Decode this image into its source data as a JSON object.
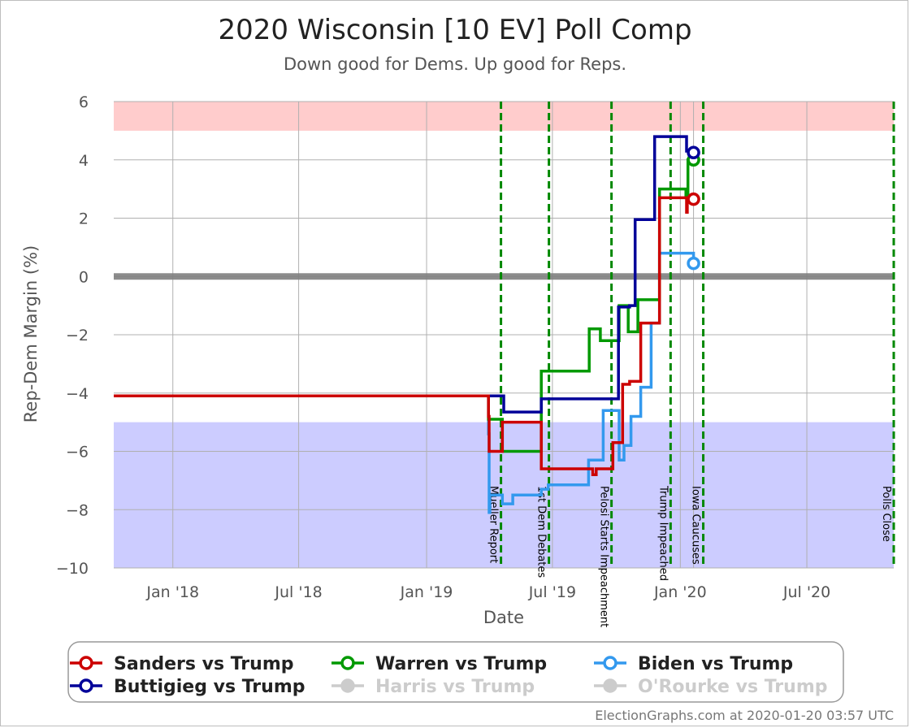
{
  "chart_data": {
    "type": "line",
    "title": "2020 Wisconsin [10 EV] Poll Comp",
    "subtitle": "Down good for Dems. Up good for Reps.",
    "xlabel": "Date",
    "ylabel": "Rep-Dem Margin (%)",
    "ylim": [
      -10,
      6
    ],
    "xlim": [
      "2017-10-08",
      "2020-11-03"
    ],
    "yticks": [
      6,
      4,
      2,
      0,
      -2,
      -4,
      -6,
      -8,
      -10
    ],
    "ytick_labels": [
      "6",
      "4",
      "2",
      "0",
      "−2",
      "−4",
      "−6",
      "−8",
      "−10"
    ],
    "xticks": [
      {
        "date": "2018-01-01",
        "label": "Jan '18"
      },
      {
        "date": "2018-07-01",
        "label": "Jul '18"
      },
      {
        "date": "2019-01-01",
        "label": "Jan '19"
      },
      {
        "date": "2019-07-01",
        "label": "Jul '19"
      },
      {
        "date": "2020-01-01",
        "label": "Jan '20"
      },
      {
        "date": "2020-07-01",
        "label": "Jul '20"
      }
    ],
    "grid": true,
    "bands": [
      {
        "from": 5,
        "to": 6,
        "color": "#ffcccc"
      },
      {
        "from": -10,
        "to": -5,
        "color": "#ccccff"
      }
    ],
    "zero_line": 0,
    "events": [
      {
        "date": "2019-04-18",
        "label": "Mueller Report"
      },
      {
        "date": "2019-06-26",
        "label": "1st Dem Debates"
      },
      {
        "date": "2019-09-24",
        "label": "Pelosi Starts Impeachment"
      },
      {
        "date": "2019-12-18",
        "label": "Trump Impeached"
      },
      {
        "date": "2020-02-03",
        "label": "Iowa Caucuses"
      },
      {
        "date": "2020-11-03",
        "label": "Polls Close"
      }
    ],
    "series": [
      {
        "name": "Sanders vs Trump",
        "color": "#cc0000",
        "points": [
          [
            "2017-10-08",
            -4.1
          ],
          [
            "2019-03-28",
            -4.1
          ],
          [
            "2019-03-31",
            -4.8
          ],
          [
            "2019-04-01",
            -6.0
          ],
          [
            "2019-04-20",
            -5.0
          ],
          [
            "2019-06-15",
            -6.6
          ],
          [
            "2019-08-28",
            -6.8
          ],
          [
            "2019-09-02",
            -6.6
          ],
          [
            "2019-09-26",
            -5.7
          ],
          [
            "2019-10-10",
            -3.7
          ],
          [
            "2019-10-20",
            -3.6
          ],
          [
            "2019-11-05",
            -1.6
          ],
          [
            "2019-12-02",
            2.7
          ],
          [
            "2020-01-09",
            2.7
          ],
          [
            "2020-01-10",
            2.2
          ],
          [
            "2020-01-11",
            2.7
          ],
          [
            "2020-01-20",
            2.65
          ]
        ]
      },
      {
        "name": "Warren vs Trump",
        "color": "#009900",
        "points": [
          [
            "2017-10-08",
            -4.1
          ],
          [
            "2019-03-28",
            -4.1
          ],
          [
            "2019-03-31",
            -4.9
          ],
          [
            "2019-04-20",
            -6.0
          ],
          [
            "2019-06-15",
            -3.25
          ],
          [
            "2019-08-23",
            -1.8
          ],
          [
            "2019-09-08",
            -2.2
          ],
          [
            "2019-10-05",
            -1.0
          ],
          [
            "2019-10-18",
            -1.9
          ],
          [
            "2019-11-01",
            -0.8
          ],
          [
            "2019-12-02",
            3.0
          ],
          [
            "2020-01-09",
            2.7
          ],
          [
            "2020-01-12",
            4.0
          ],
          [
            "2020-01-20",
            4.0
          ]
        ]
      },
      {
        "name": "Biden vs Trump",
        "color": "#3399ee",
        "points": [
          [
            "2017-10-08",
            -4.1
          ],
          [
            "2019-03-28",
            -4.1
          ],
          [
            "2019-03-31",
            -5.4
          ],
          [
            "2019-04-01",
            -8.1
          ],
          [
            "2019-04-02",
            -7.5
          ],
          [
            "2019-04-20",
            -7.8
          ],
          [
            "2019-05-05",
            -7.5
          ],
          [
            "2019-06-15",
            -7.3
          ],
          [
            "2019-06-25",
            -7.15
          ],
          [
            "2019-08-22",
            -6.3
          ],
          [
            "2019-09-12",
            -4.6
          ],
          [
            "2019-10-05",
            -6.3
          ],
          [
            "2019-10-12",
            -5.8
          ],
          [
            "2019-10-22",
            -4.8
          ],
          [
            "2019-11-05",
            -3.8
          ],
          [
            "2019-11-20",
            -1.6
          ],
          [
            "2019-12-02",
            0.8
          ],
          [
            "2020-01-09",
            0.8
          ],
          [
            "2020-01-20",
            0.45
          ]
        ]
      },
      {
        "name": "Buttigieg vs Trump",
        "color": "#000099",
        "points": [
          [
            "2017-10-08",
            -4.1
          ],
          [
            "2019-04-20",
            -4.1
          ],
          [
            "2019-04-22",
            -4.65
          ],
          [
            "2019-06-15",
            -4.2
          ],
          [
            "2019-10-04",
            -1.05
          ],
          [
            "2019-10-20",
            -1.0
          ],
          [
            "2019-10-28",
            1.95
          ],
          [
            "2019-11-25",
            4.8
          ],
          [
            "2020-01-09",
            4.8
          ],
          [
            "2020-01-10",
            4.3
          ],
          [
            "2020-01-20",
            4.25
          ]
        ]
      },
      {
        "name": "Harris vs Trump",
        "color": "#cccccc",
        "points": []
      },
      {
        "name": "O'Rourke vs Trump",
        "color": "#cccccc",
        "points": []
      }
    ]
  },
  "legend": {
    "items": [
      {
        "label": "Sanders vs Trump",
        "color": "#cc0000",
        "text_color": "#222222"
      },
      {
        "label": "Warren vs Trump",
        "color": "#009900",
        "text_color": "#222222"
      },
      {
        "label": "Biden vs Trump",
        "color": "#3399ee",
        "text_color": "#222222"
      },
      {
        "label": "Buttigieg vs Trump",
        "color": "#000099",
        "text_color": "#222222"
      },
      {
        "label": "Harris vs Trump",
        "color": "#cccccc",
        "text_color": "#cccccc"
      },
      {
        "label": "O'Rourke vs Trump",
        "color": "#cccccc",
        "text_color": "#cccccc"
      }
    ]
  },
  "footer": {
    "credit": "ElectionGraphs.com at 2020-01-20 03:57 UTC"
  }
}
